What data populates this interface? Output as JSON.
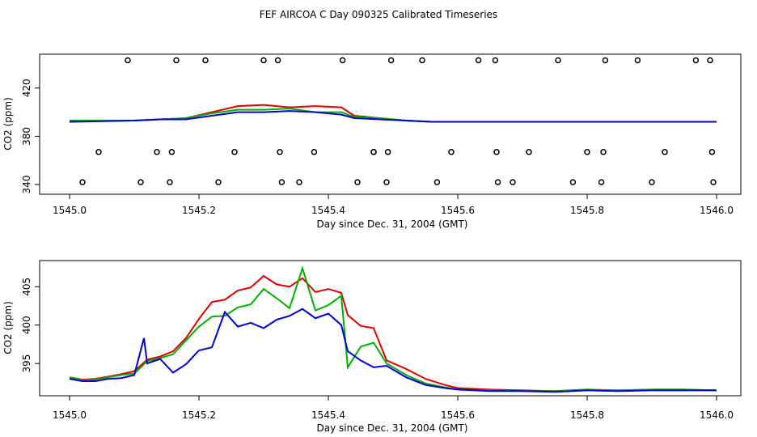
{
  "title": "FEF AIRCOA C  Day 090325  Calibrated Timeseries",
  "colors": {
    "red": "#e00000",
    "green": "#00b000",
    "blue": "#0000d0",
    "black": "#000000"
  },
  "chart_data": [
    {
      "type": "line",
      "xlabel": "Day since Dec. 31, 2004 (GMT)",
      "ylabel": "CO2 (ppm)",
      "xlim": [
        1545.0,
        1546.0
      ],
      "ylim": [
        336,
        448
      ],
      "xticks": [
        1545.0,
        1545.2,
        1545.4,
        1545.6,
        1545.8,
        1546.0
      ],
      "xtick_labels": [
        "1545.0",
        "1545.2",
        "1545.4",
        "1545.6",
        "1545.8",
        "1546.0"
      ],
      "yticks": [
        340,
        380,
        420
      ],
      "ytick_labels": [
        "340",
        "380",
        "420"
      ],
      "series": [
        {
          "name": "red",
          "x": [
            1545.0,
            1545.1,
            1545.14,
            1545.18,
            1545.22,
            1545.26,
            1545.3,
            1545.34,
            1545.38,
            1545.42,
            1545.44,
            1545.48,
            1545.52,
            1545.56,
            1545.6,
            1545.7,
            1545.8,
            1545.9,
            1546.0
          ],
          "y": [
            393,
            393,
            394,
            395,
            400,
            405,
            406,
            404,
            405,
            404,
            397,
            395,
            393,
            392,
            392,
            392,
            392,
            392,
            392
          ]
        },
        {
          "name": "green",
          "x": [
            1545.0,
            1545.1,
            1545.14,
            1545.18,
            1545.22,
            1545.26,
            1545.3,
            1545.34,
            1545.38,
            1545.42,
            1545.44,
            1545.48,
            1545.52,
            1545.56,
            1545.6,
            1545.7,
            1545.8,
            1545.9,
            1546.0
          ],
          "y": [
            393,
            393,
            394,
            395,
            399,
            402,
            402,
            403,
            400,
            400,
            396,
            395,
            393,
            392,
            392,
            392,
            392,
            392,
            392
          ]
        },
        {
          "name": "blue",
          "x": [
            1545.0,
            1545.1,
            1545.14,
            1545.18,
            1545.22,
            1545.26,
            1545.3,
            1545.34,
            1545.38,
            1545.42,
            1545.44,
            1545.48,
            1545.52,
            1545.56,
            1545.6,
            1545.7,
            1545.8,
            1545.9,
            1546.0
          ],
          "y": [
            392,
            393,
            394,
            394,
            397,
            400,
            400,
            401,
            400,
            398,
            395,
            394,
            393,
            392,
            392,
            392,
            392,
            392,
            392
          ]
        }
      ],
      "markers": {
        "name": "circles",
        "x": [
          1545.02,
          1545.045,
          1545.09,
          1545.11,
          1545.135,
          1545.155,
          1545.158,
          1545.165,
          1545.21,
          1545.23,
          1545.255,
          1545.3,
          1545.322,
          1545.325,
          1545.328,
          1545.355,
          1545.378,
          1545.422,
          1545.445,
          1545.47,
          1545.47,
          1545.49,
          1545.492,
          1545.497,
          1545.545,
          1545.568,
          1545.59,
          1545.632,
          1545.658,
          1545.66,
          1545.662,
          1545.685,
          1545.71,
          1545.755,
          1545.778,
          1545.8,
          1545.822,
          1545.825,
          1545.828,
          1545.878,
          1545.9,
          1545.92,
          1545.968,
          1545.99,
          1545.993,
          1545.995
        ],
        "y": [
          342,
          367,
          443,
          342,
          367,
          342,
          367,
          443,
          443,
          342,
          367,
          443,
          443,
          367,
          342,
          342,
          367,
          443,
          342,
          367,
          367,
          342,
          367,
          443,
          443,
          342,
          367,
          443,
          443,
          367,
          342,
          342,
          367,
          443,
          342,
          367,
          342,
          367,
          443,
          443,
          342,
          367,
          443,
          443,
          367,
          342
        ]
      }
    },
    {
      "type": "line",
      "xlabel": "Day since Dec. 31, 2004 (GMT)",
      "ylabel": "CO2 (ppm)",
      "xlim": [
        1545.0,
        1546.0
      ],
      "ylim": [
        390.8,
        408.4
      ],
      "xticks": [
        1545.0,
        1545.2,
        1545.4,
        1545.6,
        1545.8,
        1546.0
      ],
      "xtick_labels": [
        "1545.0",
        "1545.2",
        "1545.4",
        "1545.6",
        "1545.8",
        "1546.0"
      ],
      "yticks": [
        395,
        400,
        405
      ],
      "ytick_labels": [
        "395",
        "400",
        "405"
      ],
      "series": [
        {
          "name": "red",
          "x": [
            1545.0,
            1545.02,
            1545.04,
            1545.06,
            1545.08,
            1545.1,
            1545.12,
            1545.14,
            1545.16,
            1545.18,
            1545.2,
            1545.22,
            1545.24,
            1545.26,
            1545.28,
            1545.3,
            1545.32,
            1545.34,
            1545.36,
            1545.38,
            1545.4,
            1545.42,
            1545.43,
            1545.45,
            1545.47,
            1545.49,
            1545.52,
            1545.55,
            1545.58,
            1545.6,
            1545.65,
            1545.7,
            1545.75,
            1545.8,
            1545.85,
            1545.9,
            1545.95,
            1546.0
          ],
          "y": [
            393.2,
            392.9,
            393.0,
            393.3,
            393.6,
            394.0,
            395.5,
            395.9,
            396.6,
            398.3,
            400.8,
            403.0,
            403.3,
            404.5,
            404.9,
            406.4,
            405.3,
            405.0,
            406.1,
            404.3,
            404.7,
            404.2,
            401.3,
            399.9,
            399.6,
            395.4,
            394.3,
            393.0,
            392.2,
            391.8,
            391.6,
            391.5,
            391.4,
            391.6,
            391.5,
            391.6,
            391.6,
            391.5
          ]
        },
        {
          "name": "green",
          "x": [
            1545.0,
            1545.02,
            1545.04,
            1545.06,
            1545.08,
            1545.1,
            1545.12,
            1545.14,
            1545.16,
            1545.18,
            1545.2,
            1545.22,
            1545.24,
            1545.26,
            1545.28,
            1545.3,
            1545.32,
            1545.34,
            1545.36,
            1545.38,
            1545.4,
            1545.42,
            1545.43,
            1545.45,
            1545.47,
            1545.49,
            1545.52,
            1545.55,
            1545.58,
            1545.6,
            1545.65,
            1545.7,
            1545.75,
            1545.8,
            1545.85,
            1545.9,
            1545.95,
            1546.0
          ],
          "y": [
            393.2,
            392.8,
            392.9,
            393.2,
            393.5,
            393.7,
            395.3,
            395.7,
            396.2,
            398.0,
            399.8,
            401.1,
            401.2,
            402.3,
            402.7,
            404.7,
            403.5,
            402.2,
            407.4,
            401.9,
            402.6,
            403.8,
            394.5,
            397.2,
            397.7,
            395.0,
            393.5,
            392.4,
            391.9,
            391.6,
            391.5,
            391.4,
            391.4,
            391.6,
            391.5,
            391.6,
            391.6,
            391.5
          ]
        },
        {
          "name": "blue",
          "x": [
            1545.0,
            1545.02,
            1545.04,
            1545.06,
            1545.08,
            1545.1,
            1545.115,
            1545.12,
            1545.14,
            1545.16,
            1545.18,
            1545.2,
            1545.22,
            1545.24,
            1545.26,
            1545.28,
            1545.3,
            1545.32,
            1545.34,
            1545.36,
            1545.38,
            1545.4,
            1545.42,
            1545.43,
            1545.45,
            1545.47,
            1545.49,
            1545.52,
            1545.55,
            1545.58,
            1545.6,
            1545.65,
            1545.7,
            1545.75,
            1545.8,
            1545.85,
            1545.9,
            1545.95,
            1546.0
          ],
          "y": [
            393.0,
            392.7,
            392.7,
            393.0,
            393.1,
            393.5,
            398.3,
            395.0,
            395.6,
            393.8,
            394.9,
            396.7,
            397.1,
            401.7,
            399.8,
            400.3,
            399.6,
            400.7,
            401.2,
            402.1,
            400.9,
            401.5,
            400.0,
            396.6,
            395.4,
            394.5,
            394.7,
            393.2,
            392.2,
            391.8,
            391.6,
            391.4,
            391.4,
            391.3,
            391.5,
            391.4,
            391.5,
            391.5,
            391.5
          ]
        }
      ]
    }
  ]
}
